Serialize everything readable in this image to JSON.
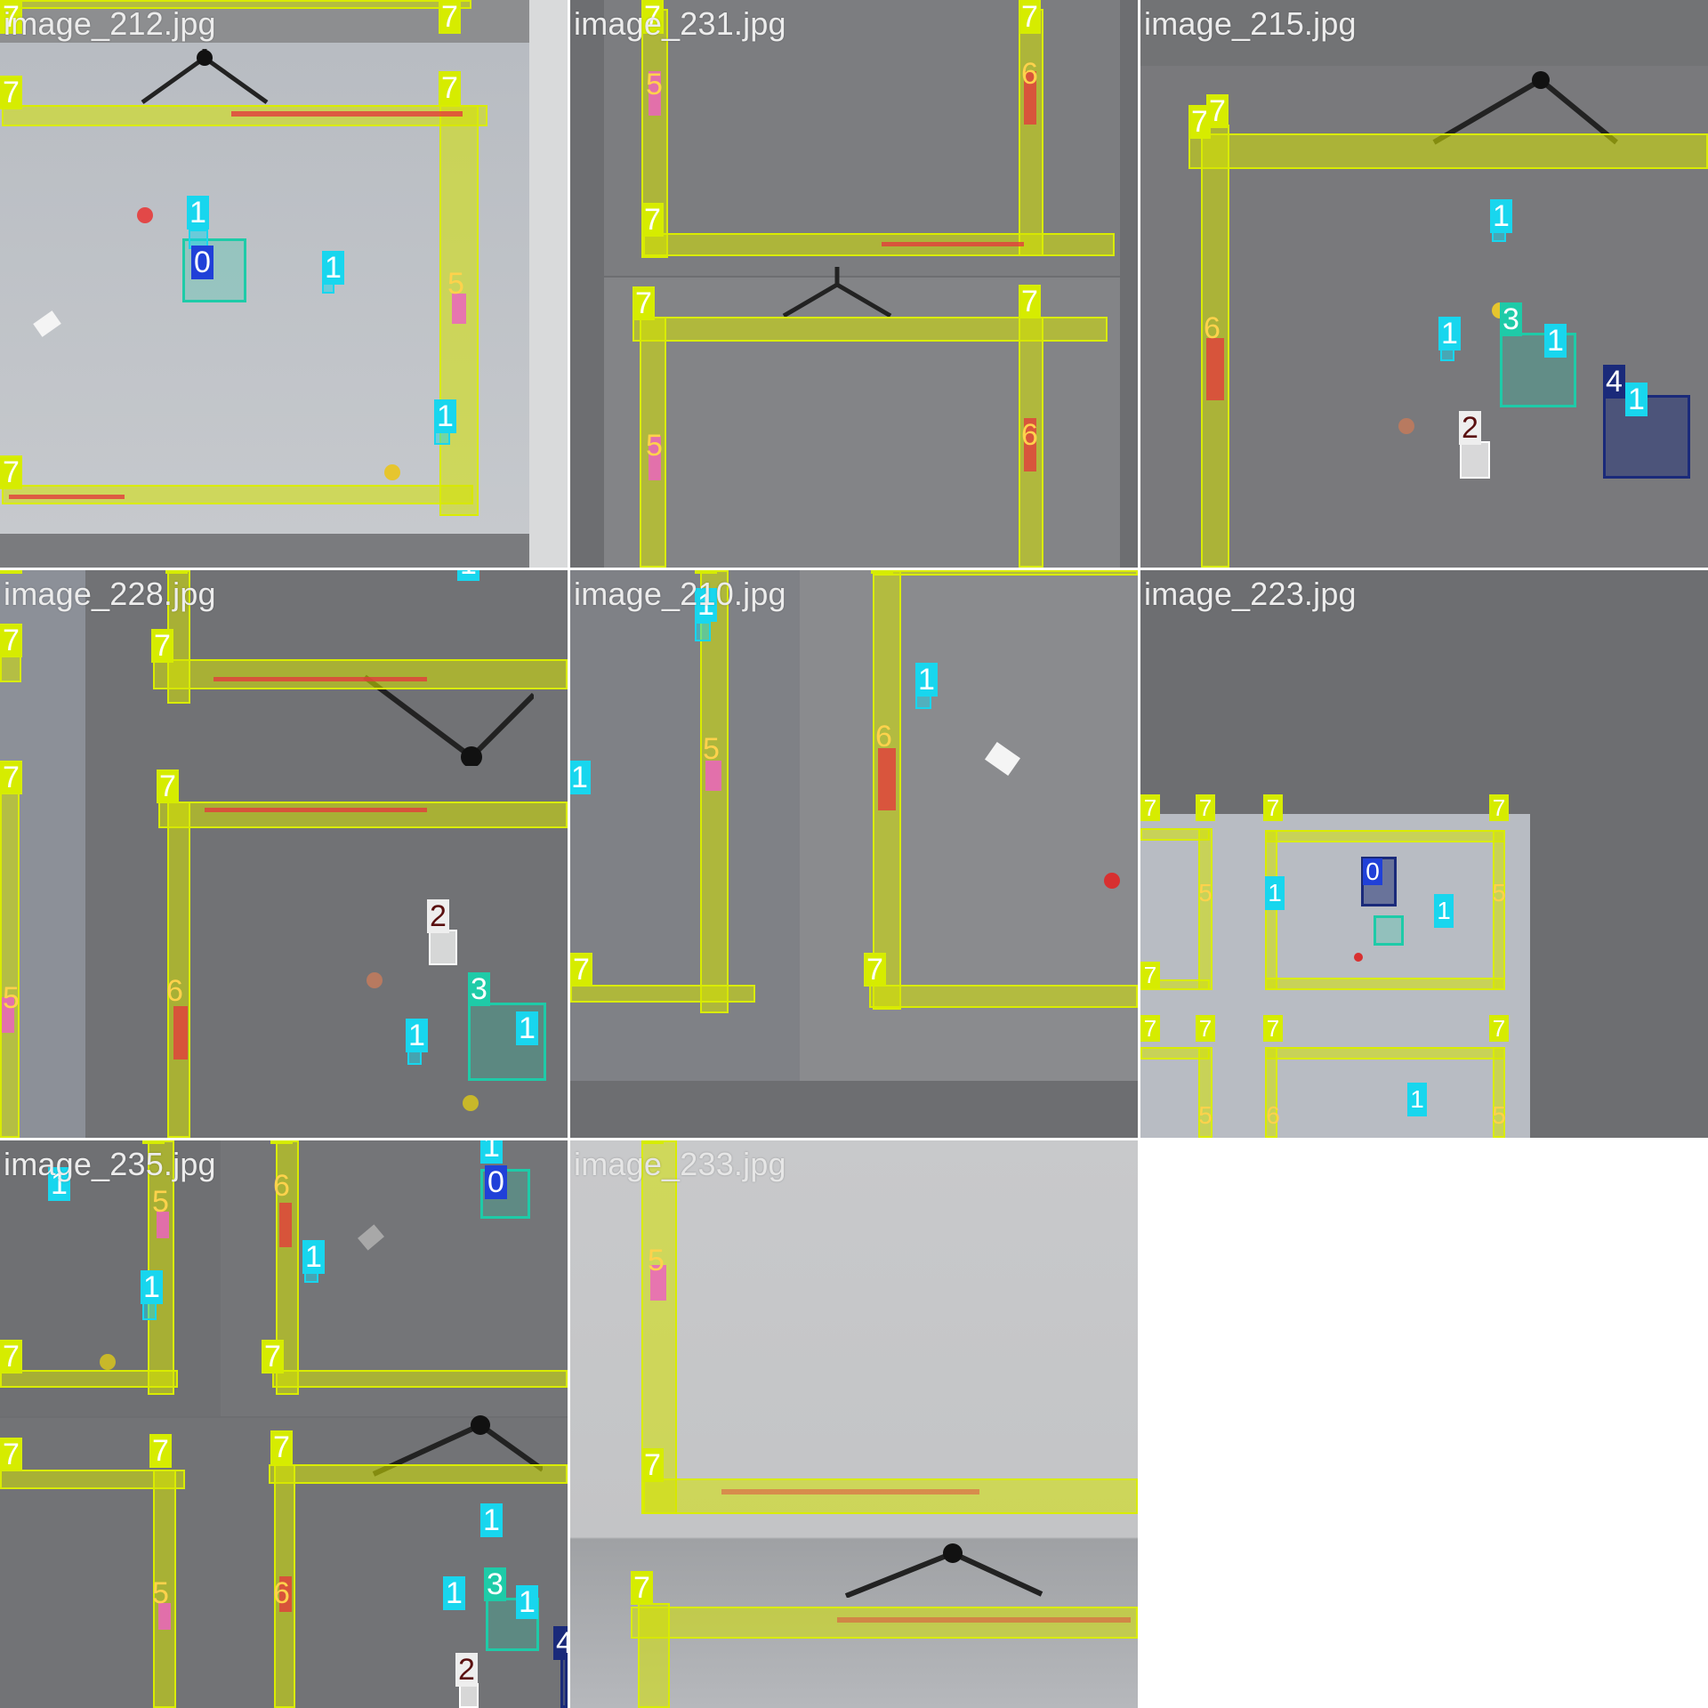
{
  "tiles": [
    {
      "filename": "image_212.jpg"
    },
    {
      "filename": "image_231.jpg"
    },
    {
      "filename": "image_215.jpg"
    },
    {
      "filename": "image_228.jpg"
    },
    {
      "filename": "image_210.jpg"
    },
    {
      "filename": "image_223.jpg"
    },
    {
      "filename": "image_235.jpg"
    },
    {
      "filename": "image_233.jpg"
    }
  ],
  "class_labels": {
    "c0": "0",
    "c1": "1",
    "c2": "2",
    "c3": "3",
    "c4": "4",
    "c5": "5",
    "c6": "6",
    "c7": "7"
  },
  "colors": {
    "class_7": "#d6ec00",
    "class_6": "#e23c3c",
    "class_5": "#eb64be",
    "class_1": "#18d6ee",
    "class_3": "#1ecba8",
    "class_0": "#2040d8",
    "class_4": "#1a2a7a",
    "class_2": "#eeeeee",
    "floor": "#6e6f72",
    "grid_line": "#ffffff"
  }
}
